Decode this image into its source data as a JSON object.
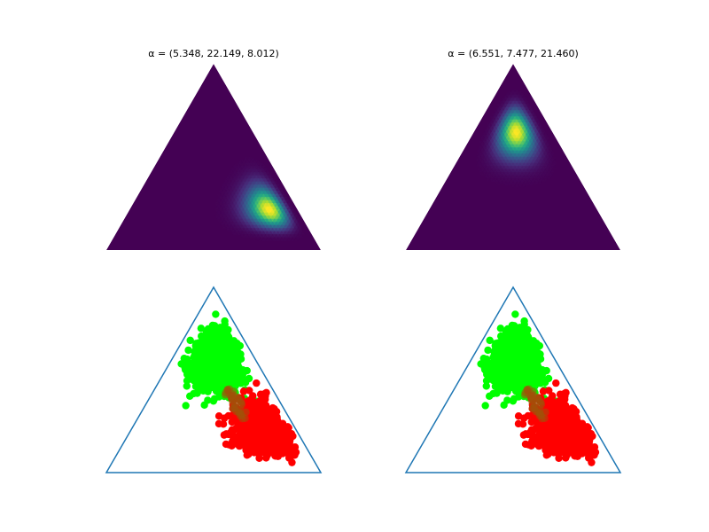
{
  "chart_data": [
    {
      "type": "heatmap",
      "title": "α = (5.348, 22.149, 8.012)",
      "alpha": [
        5.348,
        22.149,
        8.012
      ],
      "colormap": "viridis"
    },
    {
      "type": "heatmap",
      "title": "α = (6.551, 7.477, 21.460)",
      "alpha": [
        6.551,
        7.477,
        21.46
      ],
      "colormap": "viridis"
    },
    {
      "type": "scatter",
      "title": "",
      "series": [
        {
          "class": "green",
          "color": "#00ff00",
          "alpha": [
            6.551,
            7.477,
            21.46
          ]
        },
        {
          "class": "red",
          "color": "#ff0000",
          "alpha": [
            5.348,
            22.149,
            8.012
          ]
        }
      ],
      "overlap_color": "#a0520a",
      "triangle_color": "#1f77b4"
    },
    {
      "type": "scatter",
      "title": "",
      "series": [
        {
          "class": "green",
          "color": "#00ff00",
          "alpha": [
            6.551,
            7.477,
            21.46
          ]
        },
        {
          "class": "red",
          "color": "#ff0000",
          "alpha": [
            5.348,
            22.149,
            8.012
          ]
        }
      ],
      "overlap_color": "#a0520a",
      "triangle_color": "#1f77b4"
    }
  ]
}
